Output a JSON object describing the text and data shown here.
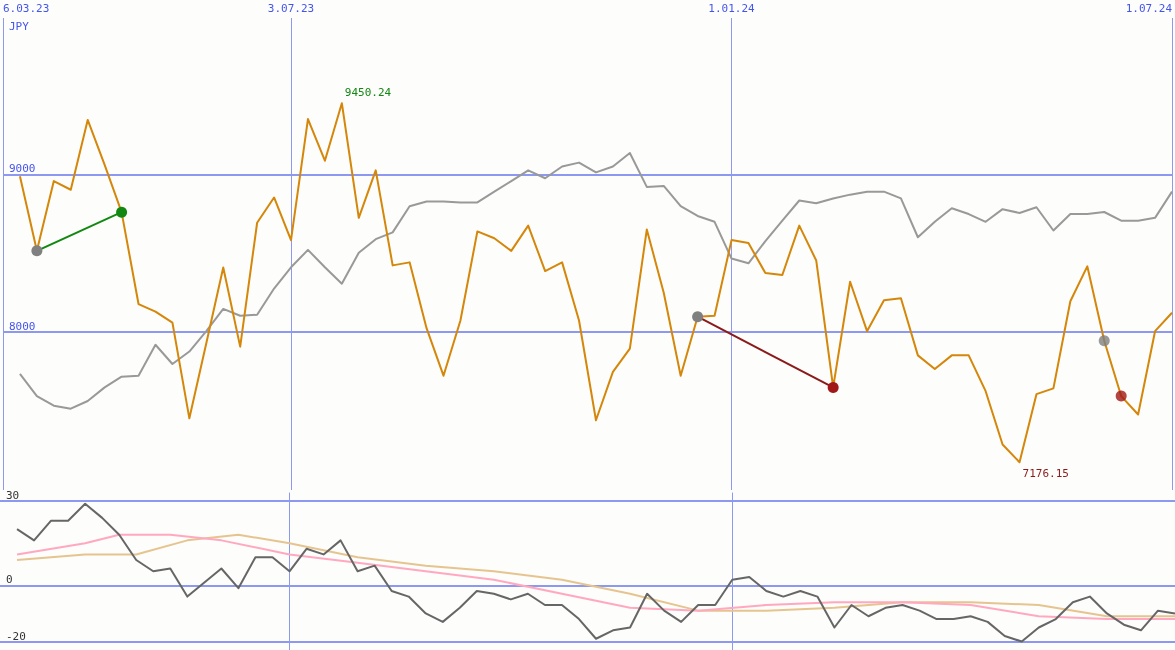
{
  "chart_data": [
    {
      "type": "line",
      "ylabel": "JPY",
      "x": [
        "2023-03-13",
        "2023-03-20",
        "2023-03-27",
        "2023-04-03",
        "2023-04-10",
        "2023-04-17",
        "2023-04-24",
        "2023-05-01",
        "2023-05-08",
        "2023-05-15",
        "2023-05-22",
        "2023-05-29",
        "2023-06-05",
        "2023-06-12",
        "2023-06-19",
        "2023-06-26",
        "2023-07-03",
        "2023-07-10",
        "2023-07-17",
        "2023-07-24",
        "2023-07-31",
        "2023-08-07",
        "2023-08-14",
        "2023-08-21",
        "2023-08-28",
        "2023-09-04",
        "2023-09-11",
        "2023-09-18",
        "2023-09-25",
        "2023-10-02",
        "2023-10-09",
        "2023-10-16",
        "2023-10-23",
        "2023-10-30",
        "2023-11-06",
        "2023-11-13",
        "2023-11-20",
        "2023-11-27",
        "2023-12-04",
        "2023-12-11",
        "2023-12-18",
        "2023-12-25",
        "2024-01-01",
        "2024-01-08",
        "2024-01-15",
        "2024-01-22",
        "2024-01-29",
        "2024-02-05",
        "2024-02-12",
        "2024-02-19",
        "2024-02-26",
        "2024-03-04",
        "2024-03-11",
        "2024-03-18",
        "2024-03-25",
        "2024-04-01",
        "2024-04-08",
        "2024-04-15",
        "2024-04-22",
        "2024-04-29",
        "2024-05-06",
        "2024-05-13",
        "2024-05-20",
        "2024-05-27",
        "2024-06-03",
        "2024-06-10",
        "2024-06-17",
        "2024-06-24",
        "2024-07-01"
      ],
      "xlim": [
        "2023-03-06",
        "2024-07-01"
      ],
      "xticks": [
        {
          "value": "2023-03-06",
          "label": "6.03.23"
        },
        {
          "value": "2023-07-03",
          "label": "3.07.23"
        },
        {
          "value": "2024-01-01",
          "label": "1.01.24"
        },
        {
          "value": "2024-07-01",
          "label": "1.07.24"
        }
      ],
      "ylim": [
        7000,
        9990
      ],
      "yticks": [
        8000,
        9000
      ],
      "grid": true,
      "series": [
        {
          "color": "#999999",
          "values": [
            7736,
            7595,
            7534,
            7515,
            7564,
            7650,
            7718,
            7724,
            7920,
            7798,
            7877,
            8006,
            8147,
            8104,
            8110,
            8276,
            8411,
            8521,
            8411,
            8307,
            8503,
            8589,
            8632,
            8798,
            8828,
            8828,
            8822,
            8822,
            8890,
            8957,
            9025,
            8975,
            9049,
            9074,
            9012,
            9049,
            9135,
            8920,
            8926,
            8798,
            8736,
            8699,
            8466,
            8436,
            8577,
            8706,
            8834,
            8816,
            8847,
            8871,
            8890,
            8890,
            8847,
            8601,
            8699,
            8785,
            8748,
            8699,
            8779,
            8755,
            8791,
            8644,
            8748,
            8748,
            8761,
            8706,
            8706,
            8724,
            8890
          ]
        },
        {
          "color": "#d4870a",
          "values": [
            8988,
            8515,
            8957,
            8902,
            9344,
            9060,
            8760,
            8178,
            8130,
            8060,
            7454,
            7930,
            8410,
            7908,
            8693,
            8853,
            8583,
            9350,
            9086,
            9450.24,
            8724,
            9025,
            8423,
            8442,
            8025,
            7724,
            8074,
            8638,
            8595,
            8515,
            8675,
            8387,
            8442,
            8074,
            7442,
            7748,
            7896,
            8650,
            8250,
            7724,
            8098,
            8104,
            8583,
            8564,
            8374,
            8362,
            8675,
            8454,
            7650,
            8319,
            8006,
            8202,
            8215,
            7853,
            7767,
            7853,
            7853,
            7626,
            7288,
            7176.15,
            7607,
            7644,
            8196,
            8417,
            7945,
            7595,
            7478,
            8006,
            8123
          ]
        },
        {
          "color": "#118811",
          "marker": "circle",
          "x": [
            "2023-03-20",
            "2023-04-24"
          ],
          "values": [
            8515,
            8760
          ],
          "colors": [
            "#808080",
            "#118811"
          ]
        },
        {
          "color": "#8b1a1a",
          "marker": "circle",
          "x": [
            "2023-12-18",
            "2024-02-12"
          ],
          "values": [
            8098,
            7650
          ],
          "colors": [
            "#808080",
            "#a01818"
          ]
        },
        {
          "type": "scatter",
          "color": "#a01818",
          "marker": "circle",
          "x": [
            "2024-06-03",
            "2024-06-10"
          ],
          "values": [
            7945,
            7595
          ],
          "colors": [
            "#808080",
            "#a01818"
          ]
        }
      ],
      "annotations": [
        {
          "text": "9450.24",
          "x": "2023-07-24",
          "y": 9450.24
        },
        {
          "text": "7176.15",
          "x": "2024-04-29",
          "y": 7176.15
        }
      ]
    },
    {
      "type": "line",
      "x": [
        "2023-03-13",
        "2023-03-20",
        "2023-03-27",
        "2023-04-03",
        "2023-04-10",
        "2023-04-17",
        "2023-04-24",
        "2023-05-01",
        "2023-05-08",
        "2023-05-15",
        "2023-05-22",
        "2023-05-29",
        "2023-06-05",
        "2023-06-12",
        "2023-06-19",
        "2023-06-26",
        "2023-07-03",
        "2023-07-10",
        "2023-07-17",
        "2023-07-24",
        "2023-07-31",
        "2023-08-07",
        "2023-08-14",
        "2023-08-21",
        "2023-08-28",
        "2023-09-04",
        "2023-09-11",
        "2023-09-18",
        "2023-09-25",
        "2023-10-02",
        "2023-10-09",
        "2023-10-16",
        "2023-10-23",
        "2023-10-30",
        "2023-11-06",
        "2023-11-13",
        "2023-11-20",
        "2023-11-27",
        "2023-12-04",
        "2023-12-11",
        "2023-12-18",
        "2023-12-25",
        "2024-01-01",
        "2024-01-08",
        "2024-01-15",
        "2024-01-22",
        "2024-01-29",
        "2024-02-05",
        "2024-02-12",
        "2024-02-19",
        "2024-02-26",
        "2024-03-04",
        "2024-03-11",
        "2024-03-18",
        "2024-03-25",
        "2024-04-01",
        "2024-04-08",
        "2024-04-15",
        "2024-04-22",
        "2024-04-29",
        "2024-05-06",
        "2024-05-13",
        "2024-05-20",
        "2024-05-27",
        "2024-06-03",
        "2024-06-10",
        "2024-06-17",
        "2024-06-24",
        "2024-07-01"
      ],
      "xlim": [
        "2023-03-06",
        "2024-07-01"
      ],
      "xticks": [
        {
          "value": "2023-07-03",
          "label": null
        },
        {
          "value": "2024-01-01",
          "label": null
        }
      ],
      "ylim": [
        -23,
        33
      ],
      "yticks": [
        -20,
        0,
        30
      ],
      "grid": true,
      "tick_labels": "y",
      "series": [
        {
          "color": "#e6c48f",
          "x": [
            "2023-03-13",
            "2023-04-10",
            "2023-05-01",
            "2023-05-22",
            "2023-06-12",
            "2023-07-03",
            "2023-07-31",
            "2023-08-28",
            "2023-09-25",
            "2023-10-23",
            "2023-11-20",
            "2023-12-18",
            "2024-01-15",
            "2024-02-12",
            "2024-03-11",
            "2024-04-08",
            "2024-05-06",
            "2024-06-03",
            "2024-07-01"
          ],
          "values": [
            9,
            11,
            11,
            16,
            18,
            15,
            10,
            7,
            5,
            2,
            -3,
            -9,
            -9,
            -8,
            -6,
            -6,
            -7,
            -11,
            -11
          ]
        },
        {
          "color": "#ffa8c0",
          "x": [
            "2023-03-13",
            "2023-04-10",
            "2023-04-24",
            "2023-05-15",
            "2023-06-05",
            "2023-07-03",
            "2023-07-31",
            "2023-08-28",
            "2023-09-25",
            "2023-10-23",
            "2023-11-20",
            "2023-12-18",
            "2024-01-15",
            "2024-02-12",
            "2024-03-11",
            "2024-04-08",
            "2024-05-06",
            "2024-06-03",
            "2024-07-01"
          ],
          "values": [
            11,
            15,
            18,
            18,
            16,
            11,
            8,
            5,
            2,
            -3,
            -8,
            -9,
            -7,
            -6,
            -6,
            -7,
            -11,
            -12,
            -12
          ]
        },
        {
          "color": "#666666",
          "values": [
            20,
            16,
            23,
            23,
            29,
            24,
            18,
            9,
            5,
            6,
            -4,
            1,
            6,
            -1,
            10,
            10,
            5,
            13,
            11,
            16,
            5,
            7,
            -2,
            -4,
            -10,
            -13,
            -8,
            -2,
            -3,
            -5,
            -3,
            -7,
            -7,
            -12,
            -19,
            -16,
            -15,
            -3,
            -9,
            -13,
            -7,
            -7,
            2,
            3,
            -2,
            -4,
            -2,
            -4,
            -15,
            -7,
            -11,
            -8,
            -7,
            -9,
            -12,
            -12,
            -11,
            -13,
            -18,
            -20,
            -15,
            -12,
            -6,
            -4,
            -10,
            -14,
            -16,
            -9,
            -10
          ]
        }
      ]
    }
  ]
}
